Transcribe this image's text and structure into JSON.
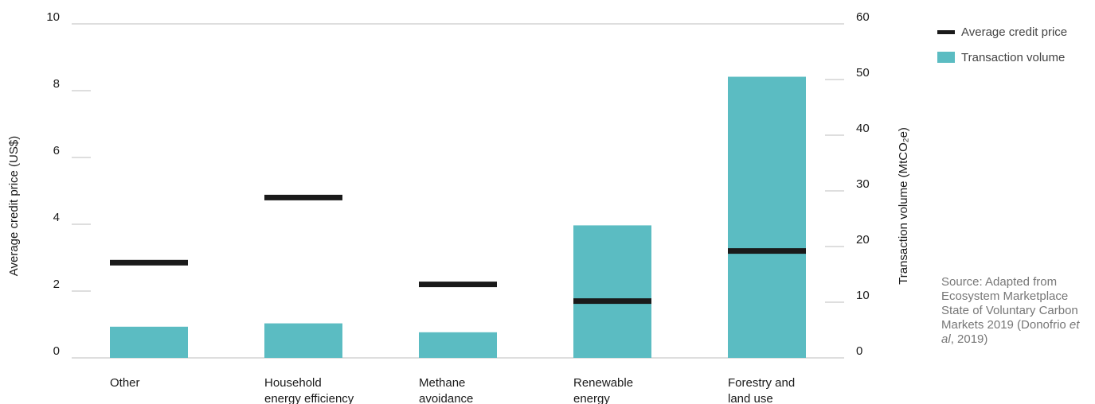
{
  "chart_data": {
    "type": "bar",
    "categories": [
      [
        "Other"
      ],
      [
        "Household",
        "energy efficiency"
      ],
      [
        "Methane",
        "avoidance"
      ],
      [
        "Renewable",
        "energy"
      ],
      [
        "Forestry and",
        "land use"
      ]
    ],
    "series": [
      {
        "name": "Transaction volume",
        "axis": "right",
        "mark": "bar",
        "color": "#5bbcc2",
        "values": [
          5.6,
          6.2,
          4.6,
          23.8,
          50.5
        ]
      },
      {
        "name": "Average credit price",
        "axis": "left",
        "mark": "line-marker",
        "color": "#1a1a1a",
        "values": [
          2.85,
          4.8,
          2.2,
          1.7,
          3.2
        ]
      }
    ],
    "y_left": {
      "label": "Average credit price (US$)",
      "ylim": [
        0,
        10
      ],
      "ticks": [
        0,
        2,
        4,
        6,
        8,
        10
      ]
    },
    "y_right": {
      "label": "Transaction volume (MtCO₂e)",
      "ylim": [
        0,
        60
      ],
      "ticks": [
        0,
        10,
        20,
        30,
        40,
        50,
        60
      ]
    },
    "legend": {
      "placement": "top-right",
      "entries": [
        "Average credit price",
        "Transaction volume"
      ]
    },
    "grid": "top-line-only"
  },
  "source": {
    "prefix": "Source: Adapted from Ecosystem Marketplace State of Voluntary Carbon Markets 2019 (Donofrio ",
    "italic": "et al",
    "suffix": ", 2019)"
  }
}
